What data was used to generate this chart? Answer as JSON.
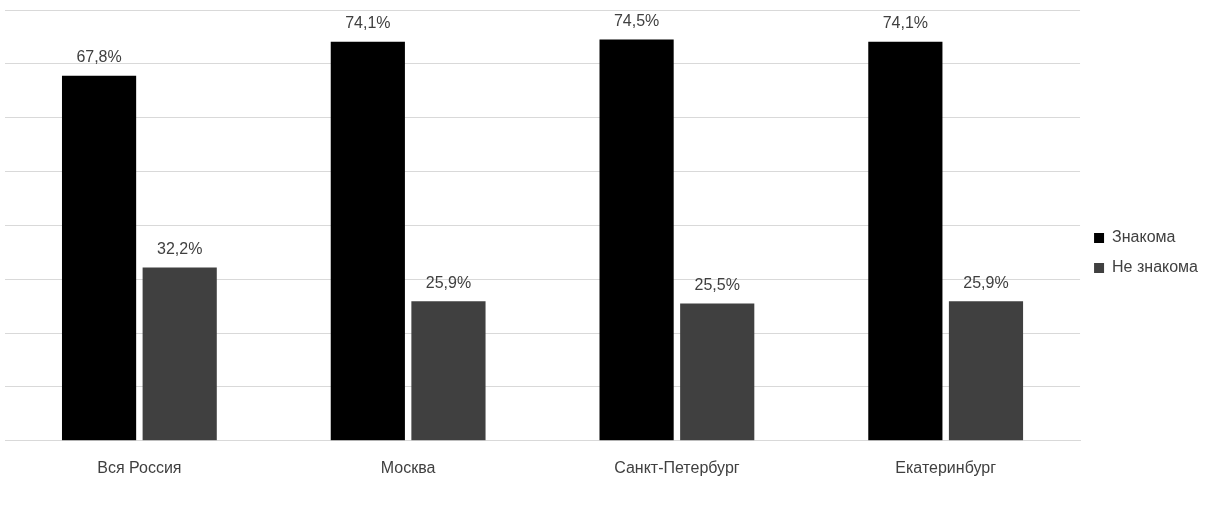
{
  "chart_data": {
    "type": "bar",
    "categories": [
      "Вся Россия",
      "Москва",
      "Санкт-Петербург",
      "Екатеринбург"
    ],
    "series": [
      {
        "name": "Знакома",
        "color": "#000000",
        "values": [
          67.8,
          74.1,
          74.5,
          74.1
        ],
        "value_labels": [
          "67,8%",
          "74,1%",
          "74,5%",
          "74,1%"
        ]
      },
      {
        "name": "Не знакома",
        "color": "#404040",
        "values": [
          32.2,
          25.9,
          25.5,
          25.9
        ],
        "value_labels": [
          "32,2%",
          "25,9%",
          "25,5%",
          "25,9%"
        ]
      }
    ],
    "ylim": [
      0,
      80
    ],
    "yticks": [
      {
        "value": 0,
        "label": null
      },
      {
        "value": 10,
        "label": null
      },
      {
        "value": 20,
        "label": null
      },
      {
        "value": 30,
        "label": null
      },
      {
        "value": 40,
        "label": null
      },
      {
        "value": 50,
        "label": null
      },
      {
        "value": 60,
        "label": null
      },
      {
        "value": 70,
        "label": null
      },
      {
        "value": 80,
        "label": null
      }
    ],
    "tick_labels": "x",
    "grid": "y",
    "legend": "right"
  }
}
